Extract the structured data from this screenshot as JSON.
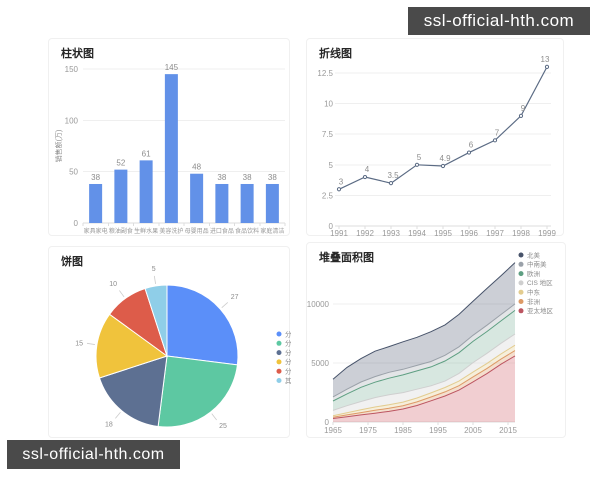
{
  "watermarks": {
    "top_right": "ssl-official-hth.com",
    "bottom_left": "ssl-official-hth.com",
    "background": "#4a4a4a",
    "text_color": "#ffffff"
  },
  "chart_data": [
    {
      "type": "bar",
      "title": "柱状图",
      "ylabel": "销售额(万)",
      "categories": [
        "家具家电",
        "粮油副食",
        "生鲜水果",
        "美容洗护",
        "母婴用品",
        "进口食品",
        "食品饮料",
        "家庭清洁"
      ],
      "values": [
        38,
        52,
        61,
        145,
        48,
        38,
        38,
        38
      ],
      "yticks": [
        0,
        50,
        100,
        150
      ],
      "ylim": [
        0,
        155
      ],
      "bar_color": "#6291e8",
      "grid": true
    },
    {
      "type": "line",
      "title": "折线图",
      "x": [
        "1991",
        "1992",
        "1993",
        "1994",
        "1995",
        "1996",
        "1997",
        "1998",
        "1999"
      ],
      "values": [
        3,
        4,
        3.5,
        5,
        4.9,
        6,
        7,
        9,
        13
      ],
      "yticks": [
        0,
        2.5,
        5,
        7.5,
        10,
        12.5
      ],
      "ylim": [
        0,
        13.5
      ],
      "line_color": "#5b6b84",
      "grid": true
    },
    {
      "type": "pie",
      "title": "饼图",
      "slices": [
        {
          "label": "分类一",
          "value": 27,
          "color": "#5b8ff9"
        },
        {
          "label": "分类二",
          "value": 25,
          "color": "#5dc8a2"
        },
        {
          "label": "分类三",
          "value": 18,
          "color": "#5d7092"
        },
        {
          "label": "分类四",
          "value": 15,
          "color": "#f0c33c"
        },
        {
          "label": "分类五",
          "value": 10,
          "color": "#dd5c4a"
        },
        {
          "label": "其它",
          "value": 5,
          "color": "#8fcee8"
        }
      ],
      "legend_position": "right"
    },
    {
      "type": "area",
      "title": "堆叠面积图",
      "x": [
        1965,
        1969,
        1973,
        1977,
        1981,
        1985,
        1989,
        1993,
        1997,
        2001,
        2005,
        2009,
        2013,
        2017
      ],
      "xticks": [
        1965,
        1975,
        1985,
        1995,
        2005,
        2015
      ],
      "yticks": [
        0,
        5000,
        10000
      ],
      "ylim": [
        0,
        14000
      ],
      "legend_position": "right",
      "series": [
        {
          "name": "北美",
          "stroke": "#47536a",
          "fill": "rgba(71,83,106,0.28)",
          "values": [
            1500,
            1850,
            1980,
            2150,
            2180,
            2330,
            2380,
            2520,
            2580,
            2750,
            2880,
            3120,
            3280,
            3500
          ]
        },
        {
          "name": "中南美",
          "stroke": "#9aa1a9",
          "fill": "rgba(154,161,169,0.28)",
          "values": [
            350,
            400,
            450,
            480,
            500,
            480,
            470,
            460,
            480,
            500,
            520,
            530,
            540,
            550
          ]
        },
        {
          "name": "欧洲",
          "stroke": "#5e9f82",
          "fill": "rgba(94,159,130,0.25)",
          "values": [
            800,
            1000,
            1200,
            1300,
            1400,
            1500,
            1550,
            1600,
            1700,
            1750,
            1800,
            1850,
            1900,
            2000
          ]
        },
        {
          "name": "CIS 地区",
          "stroke": "#cfcfcf",
          "fill": "rgba(207,207,207,0.30)",
          "values": [
            450,
            600,
            700,
            800,
            850,
            800,
            750,
            600,
            550,
            650,
            800,
            850,
            900,
            950
          ]
        },
        {
          "name": "中东",
          "stroke": "#e3cc8f",
          "fill": "rgba(227,204,143,0.32)",
          "values": [
            130,
            180,
            240,
            280,
            300,
            310,
            330,
            350,
            370,
            390,
            410,
            430,
            440,
            460
          ]
        },
        {
          "name": "非洲",
          "stroke": "#dd9a66",
          "fill": "rgba(221,154,102,0.32)",
          "values": [
            100,
            150,
            200,
            240,
            260,
            280,
            300,
            320,
            350,
            380,
            420,
            440,
            430,
            450
          ]
        },
        {
          "name": "亚太地区",
          "stroke": "#bc5561",
          "fill": "rgba(222,139,146,0.42)",
          "values": [
            300,
            450,
            600,
            750,
            900,
            1100,
            1400,
            1800,
            2200,
            2700,
            3400,
            4100,
            4900,
            5600
          ]
        }
      ]
    }
  ]
}
